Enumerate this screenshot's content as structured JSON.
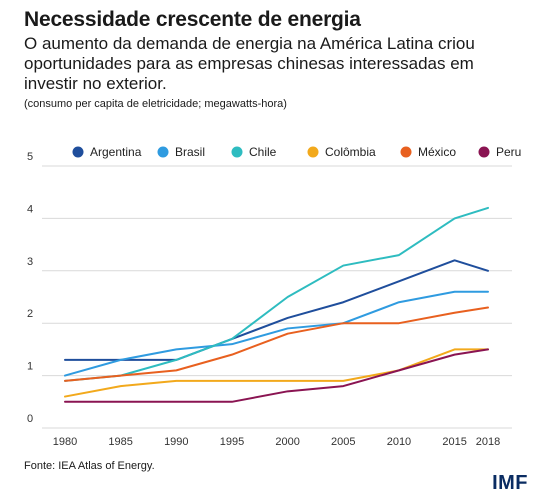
{
  "title": "Necessidade crescente de energia",
  "subtitle": "O aumento da demanda de energia na América Latina criou oportunidades para as empresas chinesas interessadas em investir no exterior.",
  "note": "(consumo per capita de eletricidade; megawatts-hora)",
  "source": "Fonte: IEA Atlas of Energy.",
  "logo": "IMF",
  "chart_data": {
    "type": "line",
    "title": "Necessidade crescente de energia",
    "ylabel": "consumo per capita de eletricidade; megawatts-hora",
    "x": [
      1980,
      1985,
      1990,
      1995,
      2000,
      2005,
      2010,
      2015,
      2018
    ],
    "x_tick_labels": [
      "1980",
      "1985",
      "1990",
      "1995",
      "2000",
      "2005",
      "2010",
      "2015",
      "2018"
    ],
    "ylim": [
      0,
      5
    ],
    "y_ticks": [
      0,
      1,
      2,
      3,
      4,
      5
    ],
    "grid": true,
    "legend_position": "top",
    "series": [
      {
        "name": "Argentina",
        "color": "#1f4e9c",
        "values": [
          1.3,
          1.3,
          1.3,
          1.7,
          2.1,
          2.4,
          2.8,
          3.2,
          3.0
        ]
      },
      {
        "name": "Brasil",
        "color": "#2f9be0",
        "values": [
          1.0,
          1.3,
          1.5,
          1.6,
          1.9,
          2.0,
          2.4,
          2.6,
          2.6
        ]
      },
      {
        "name": "Chile",
        "color": "#2ebcc0",
        "values": [
          0.9,
          1.0,
          1.3,
          1.7,
          2.5,
          3.1,
          3.3,
          4.0,
          4.2
        ]
      },
      {
        "name": "Colômbia",
        "color": "#f2a91c",
        "values": [
          0.6,
          0.8,
          0.9,
          0.9,
          0.9,
          0.9,
          1.1,
          1.5,
          1.5
        ]
      },
      {
        "name": "México",
        "color": "#e8601f",
        "values": [
          0.9,
          1.0,
          1.1,
          1.4,
          1.8,
          2.0,
          2.0,
          2.2,
          2.3
        ]
      },
      {
        "name": "Peru",
        "color": "#8a1452",
        "values": [
          0.5,
          0.5,
          0.5,
          0.5,
          0.7,
          0.8,
          1.1,
          1.4,
          1.5
        ]
      }
    ]
  }
}
